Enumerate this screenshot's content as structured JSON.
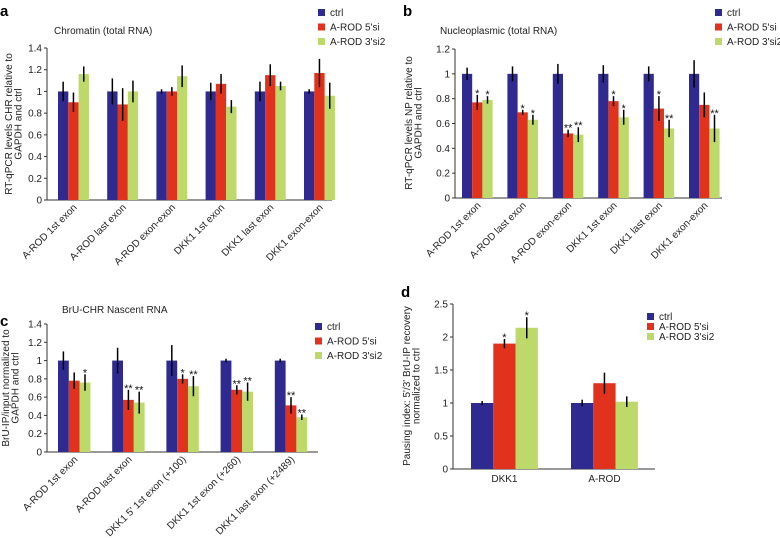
{
  "chart_data": [
    {
      "panel": "a",
      "type": "bar",
      "title": "Chromatin (total RNA)",
      "ylabel": [
        "RT-qPCR levels CHR relative to",
        "GAPDH and ctrl"
      ],
      "ylim": [
        0,
        1.4
      ],
      "ytick_step": 0.2,
      "yticks": [
        "0",
        "0.2",
        "0.4",
        "0.6",
        "0.8",
        "1",
        "1.2",
        "1.4"
      ],
      "legend_position": "top-right",
      "categories": [
        "A-ROD 1st exon",
        "A-ROD last exon",
        "A-ROD exon-exon",
        "DKK1 1st exon",
        "DKK1 last exon",
        "DKK1 exon-exon"
      ],
      "series": [
        {
          "name": "ctrl",
          "color": "#2e2a8f",
          "values": [
            1,
            1,
            1,
            1,
            1,
            1
          ],
          "errors": [
            0.09,
            0.12,
            0.02,
            0.08,
            0.09,
            0.02
          ],
          "stars": [
            "",
            "",
            "",
            "",
            "",
            ""
          ]
        },
        {
          "name": "A-ROD 5'si",
          "color": "#e0321c",
          "values": [
            0.9,
            0.88,
            1.0,
            1.07,
            1.15,
            1.17
          ],
          "errors": [
            0.09,
            0.15,
            0.04,
            0.09,
            0.1,
            0.13
          ],
          "stars": [
            "",
            "",
            "",
            "",
            "",
            ""
          ]
        },
        {
          "name": "A-ROD 3'si2",
          "color": "#bcd96a",
          "values": [
            1.16,
            1.0,
            1.14,
            0.86,
            1.05,
            0.96
          ],
          "errors": [
            0.07,
            0.1,
            0.1,
            0.06,
            0.04,
            0.12
          ],
          "stars": [
            "",
            "",
            "",
            "",
            "",
            ""
          ]
        }
      ]
    },
    {
      "panel": "b",
      "type": "bar",
      "title": "Nucleoplasmic (total RNA)",
      "ylabel": [
        "RT-qPCR levels NP relative to",
        "GAPDH and ctrl"
      ],
      "ylim": [
        0,
        1.2
      ],
      "ytick_step": 0.2,
      "yticks": [
        "0",
        "0.2",
        "0.4",
        "0.6",
        "0.8",
        "1",
        "1.2"
      ],
      "legend_position": "top-right",
      "categories": [
        "A-ROD 1st exon",
        "A-ROD last exon",
        "A-ROD exon-exon",
        "DKK1 1st exon",
        "DKK1 last exon",
        "DKK1 exon-exon"
      ],
      "series": [
        {
          "name": "ctrl",
          "color": "#2e2a8f",
          "values": [
            1,
            1,
            1,
            1,
            1,
            1
          ],
          "errors": [
            0.05,
            0.06,
            0.08,
            0.07,
            0.06,
            0.11
          ],
          "stars": [
            "",
            "",
            "",
            "",
            "",
            ""
          ]
        },
        {
          "name": "A-ROD 5'si",
          "color": "#e0321c",
          "values": [
            0.77,
            0.69,
            0.52,
            0.78,
            0.72,
            0.75
          ],
          "errors": [
            0.06,
            0.02,
            0.03,
            0.04,
            0.1,
            0.1
          ],
          "stars": [
            "*",
            "*",
            "**",
            "*",
            "*",
            ""
          ]
        },
        {
          "name": "A-ROD 3'si2",
          "color": "#bcd96a",
          "values": [
            0.79,
            0.63,
            0.51,
            0.65,
            0.56,
            0.56
          ],
          "errors": [
            0.03,
            0.04,
            0.06,
            0.06,
            0.07,
            0.11
          ],
          "stars": [
            "*",
            "*",
            "**",
            "*",
            "**",
            "**"
          ]
        }
      ]
    },
    {
      "panel": "c",
      "type": "bar",
      "title": "BrU-CHR Nascent RNA",
      "ylabel": [
        "BrU-IP/input normalized to",
        "GAPDH and ctrl"
      ],
      "ylim": [
        0,
        1.4
      ],
      "ytick_step": 0.2,
      "yticks": [
        "0",
        "0.2",
        "0.4",
        "0.6",
        "0.8",
        "1",
        "1.2",
        "1.4"
      ],
      "legend_position": "right",
      "categories": [
        "A-ROD 1st exon",
        "A-ROD last exon",
        "DKK1 5' 1st exon (+100)",
        "DKK1 1st exon (+260)",
        "DKK1 last exon (+2489)"
      ],
      "series": [
        {
          "name": "ctrl",
          "color": "#2e2a8f",
          "values": [
            1,
            1,
            1,
            1,
            1
          ],
          "errors": [
            0.1,
            0.14,
            0.17,
            0.02,
            0.02
          ],
          "stars": [
            "",
            "",
            "",
            "",
            ""
          ]
        },
        {
          "name": "A-ROD 5'si",
          "color": "#e0321c",
          "values": [
            0.78,
            0.57,
            0.8,
            0.68,
            0.51
          ],
          "errors": [
            0.09,
            0.11,
            0.05,
            0.05,
            0.09
          ],
          "stars": [
            "",
            "**",
            "*",
            "**",
            "**"
          ]
        },
        {
          "name": "A-ROD 3'si2",
          "color": "#bcd96a",
          "values": [
            0.76,
            0.54,
            0.72,
            0.66,
            0.38
          ],
          "errors": [
            0.09,
            0.12,
            0.11,
            0.1,
            0.03
          ],
          "stars": [
            "*",
            "**",
            "**",
            "**",
            "**"
          ]
        }
      ]
    },
    {
      "panel": "d",
      "type": "bar",
      "title": "",
      "ylabel": [
        "Pausing index: 5'/3' BrU-IP recovery",
        "normalized to ctrl"
      ],
      "ylim": [
        0,
        2.5
      ],
      "ytick_step": 0.5,
      "yticks": [
        "0",
        "0.5",
        "1",
        "1.5",
        "2",
        "2.5"
      ],
      "legend_position": "top-right",
      "categories": [
        "DKK1",
        "A-ROD"
      ],
      "series": [
        {
          "name": "ctrl",
          "color": "#2e2a8f",
          "values": [
            1,
            1
          ],
          "errors": [
            0.03,
            0.05
          ],
          "stars": [
            "",
            ""
          ]
        },
        {
          "name": "A-ROD 5'si",
          "color": "#e0321c",
          "values": [
            1.9,
            1.3
          ],
          "errors": [
            0.07,
            0.16
          ],
          "stars": [
            "*",
            ""
          ]
        },
        {
          "name": "A-ROD 3'si2",
          "color": "#bcd96a",
          "values": [
            2.14,
            1.02
          ],
          "errors": [
            0.16,
            0.08
          ],
          "stars": [
            "*",
            ""
          ]
        }
      ]
    }
  ]
}
